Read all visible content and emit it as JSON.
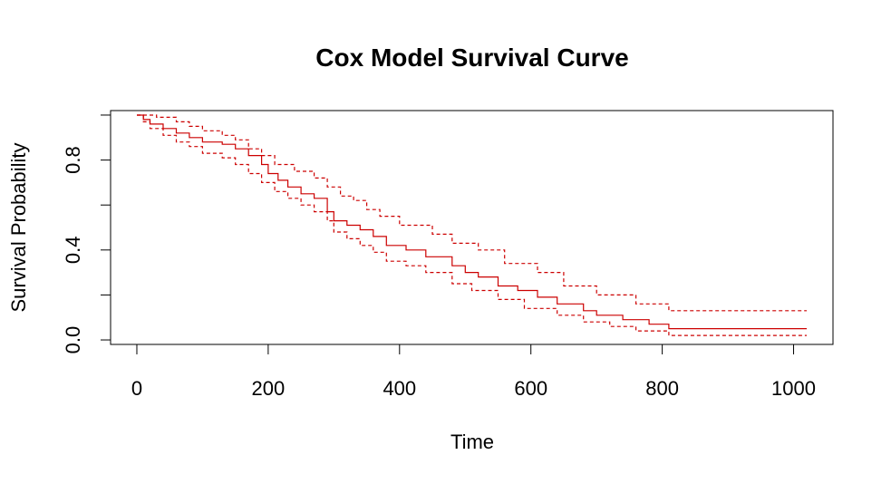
{
  "chart_data": {
    "type": "line",
    "title": "Cox Model Survival Curve",
    "xlabel": "Time",
    "ylabel": "Survival Probability",
    "xlim": [
      -40,
      1060
    ],
    "ylim": [
      -0.02,
      1.02
    ],
    "x_ticks": [
      0,
      200,
      400,
      600,
      800,
      1000
    ],
    "y_ticks": [
      0.0,
      0.2,
      0.4,
      0.6,
      0.8,
      1.0
    ],
    "y_tick_labels": [
      "0.0",
      "",
      "0.4",
      "",
      "0.8",
      ""
    ],
    "grid": false,
    "color": "#cc0000",
    "series": [
      {
        "role": "estimate",
        "step": true,
        "x": [
          0,
          10,
          20,
          40,
          60,
          80,
          100,
          130,
          150,
          170,
          190,
          200,
          215,
          230,
          250,
          270,
          290,
          300,
          320,
          340,
          360,
          380,
          410,
          440,
          480,
          500,
          520,
          550,
          580,
          610,
          640,
          680,
          700,
          740,
          780,
          810,
          1020
        ],
        "y": [
          1.0,
          0.98,
          0.96,
          0.94,
          0.92,
          0.9,
          0.88,
          0.87,
          0.85,
          0.82,
          0.78,
          0.74,
          0.71,
          0.68,
          0.65,
          0.63,
          0.57,
          0.53,
          0.51,
          0.49,
          0.46,
          0.42,
          0.4,
          0.37,
          0.33,
          0.3,
          0.28,
          0.24,
          0.22,
          0.19,
          0.16,
          0.13,
          0.11,
          0.09,
          0.07,
          0.05,
          0.05
        ]
      },
      {
        "role": "upper",
        "step": true,
        "x": [
          0,
          10,
          30,
          60,
          80,
          100,
          130,
          150,
          170,
          190,
          210,
          240,
          270,
          290,
          310,
          330,
          350,
          370,
          400,
          450,
          480,
          520,
          560,
          610,
          650,
          700,
          760,
          810,
          1020
        ],
        "y": [
          1.0,
          1.0,
          0.99,
          0.97,
          0.95,
          0.93,
          0.91,
          0.89,
          0.85,
          0.82,
          0.78,
          0.75,
          0.72,
          0.68,
          0.64,
          0.62,
          0.58,
          0.55,
          0.51,
          0.47,
          0.43,
          0.4,
          0.34,
          0.3,
          0.24,
          0.2,
          0.16,
          0.13,
          0.13
        ]
      },
      {
        "role": "lower",
        "step": true,
        "x": [
          0,
          10,
          20,
          40,
          60,
          80,
          100,
          130,
          150,
          170,
          190,
          210,
          230,
          250,
          270,
          290,
          300,
          320,
          340,
          360,
          380,
          410,
          440,
          480,
          510,
          550,
          590,
          640,
          680,
          720,
          760,
          810,
          1020
        ],
        "y": [
          1.0,
          0.97,
          0.94,
          0.91,
          0.88,
          0.86,
          0.83,
          0.81,
          0.78,
          0.74,
          0.7,
          0.66,
          0.63,
          0.6,
          0.57,
          0.53,
          0.48,
          0.45,
          0.42,
          0.39,
          0.35,
          0.33,
          0.3,
          0.25,
          0.22,
          0.18,
          0.14,
          0.11,
          0.08,
          0.06,
          0.04,
          0.02,
          0.02
        ]
      }
    ]
  }
}
